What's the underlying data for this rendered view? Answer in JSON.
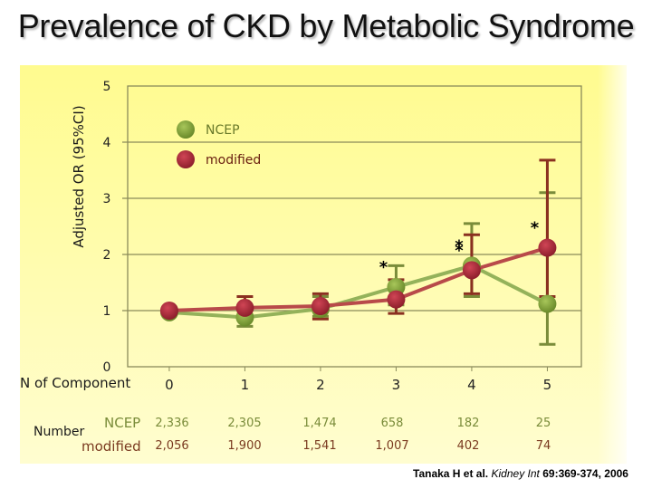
{
  "title": "Prevalence of CKD by Metabolic Syndrome",
  "chart_data": {
    "type": "line",
    "title": "Prevalence of CKD by Metabolic Syndrome",
    "xlabel": "N of Component",
    "ylabel": "Adjusted OR   (95%CI)",
    "ylim": [
      0,
      5
    ],
    "yticks": [
      "0",
      "1",
      "2",
      "3",
      "4",
      "5"
    ],
    "categories": [
      "0",
      "1",
      "2",
      "3",
      "4",
      "5"
    ],
    "grid": true,
    "legend_position": "top-left inside plot",
    "series": [
      {
        "name": "NCEP",
        "color": "#7fa03a",
        "values": [
          0.97,
          0.88,
          1.03,
          1.42,
          1.8,
          1.12
        ],
        "ci_low": [
          null,
          0.72,
          0.9,
          1.1,
          1.25,
          0.4
        ],
        "ci_high": [
          null,
          1.05,
          1.25,
          1.8,
          2.55,
          3.1
        ],
        "significant": [
          false,
          false,
          false,
          true,
          true,
          false
        ]
      },
      {
        "name": "modified",
        "color": "#b03040",
        "values": [
          1.0,
          1.05,
          1.08,
          1.2,
          1.72,
          2.12
        ],
        "ci_low": [
          null,
          0.85,
          0.85,
          0.95,
          1.3,
          1.25
        ],
        "ci_high": [
          null,
          1.25,
          1.3,
          1.55,
          2.35,
          3.68
        ],
        "significant": [
          false,
          false,
          false,
          false,
          true,
          true
        ]
      }
    ],
    "annotation": "* marks significant points"
  },
  "table": {
    "row_group_label": "Number",
    "rows": [
      {
        "label": "NCEP",
        "values": [
          "2,336",
          "2,305",
          "1,474",
          "658",
          "182",
          "25"
        ]
      },
      {
        "label": "modified",
        "values": [
          "2,056",
          "1,900",
          "1,541",
          "1,007",
          "402",
          "74"
        ]
      }
    ]
  },
  "citation": {
    "authors": "Tanaka H et al.",
    "journal": "Kidney Int",
    "ref": "69:369-374, 2006"
  }
}
